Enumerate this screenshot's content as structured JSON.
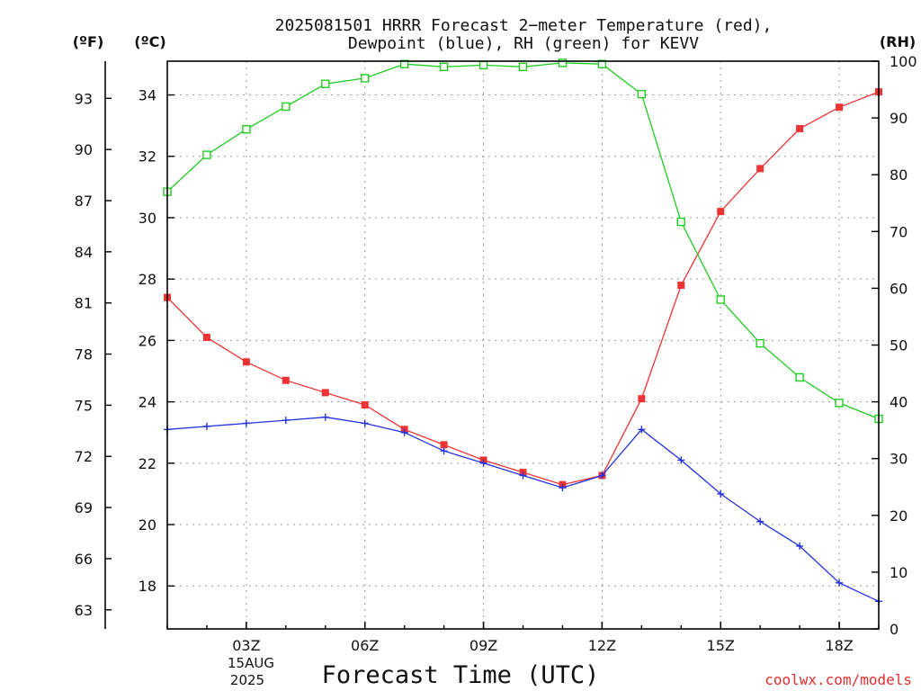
{
  "title_line1": "2025081501 HRRR Forecast 2−meter Temperature (red),",
  "title_line2": "Dewpoint (blue), RH (green) for KEVV",
  "unit_f": "(ºF)",
  "unit_c": "(ºC)",
  "unit_rh": "(RH)",
  "x_title": "Forecast Time (UTC)",
  "credit": "coolwx.com/models",
  "date_line1": "15AUG",
  "date_line2": "2025",
  "colors": {
    "temperature": "#ee3333",
    "dewpoint": "#2233dd",
    "rh": "#22cc22",
    "credit": "#e03030"
  },
  "chart_data": {
    "type": "line",
    "x_unit": "forecast hour (UTC)",
    "x": [
      1,
      2,
      3,
      4,
      5,
      6,
      7,
      8,
      9,
      10,
      11,
      12,
      13,
      14,
      15,
      16,
      17,
      18,
      19
    ],
    "xlim": [
      1,
      19
    ],
    "x_ticks": [
      {
        "x": 3,
        "label": "03Z"
      },
      {
        "x": 6,
        "label": "06Z"
      },
      {
        "x": 9,
        "label": "09Z"
      },
      {
        "x": 12,
        "label": "12Z"
      },
      {
        "x": 15,
        "label": "15Z"
      },
      {
        "x": 18,
        "label": "18Z"
      }
    ],
    "ylim_c": [
      16.6,
      35.1
    ],
    "y_ticks_c": [
      18,
      20,
      22,
      24,
      26,
      28,
      30,
      32,
      34
    ],
    "y_ticks_f": [
      63,
      66,
      69,
      72,
      75,
      78,
      81,
      84,
      87,
      90,
      93
    ],
    "ylim_rh": [
      0,
      100
    ],
    "y_ticks_rh": [
      0,
      10,
      20,
      30,
      40,
      50,
      60,
      70,
      80,
      90,
      100
    ],
    "grid": true,
    "series": [
      {
        "key": "temperature",
        "axis": "c",
        "marker": "filled-square",
        "values": [
          27.4,
          26.1,
          25.3,
          24.7,
          24.3,
          23.9,
          23.1,
          22.6,
          22.1,
          21.7,
          21.3,
          21.6,
          24.1,
          27.8,
          30.2,
          31.6,
          32.9,
          33.6,
          34.1
        ]
      },
      {
        "key": "dewpoint",
        "axis": "c",
        "marker": "plus",
        "values": [
          23.1,
          23.2,
          23.3,
          23.4,
          23.5,
          23.3,
          23.0,
          22.4,
          22.0,
          21.6,
          21.2,
          21.6,
          23.1,
          22.1,
          21.0,
          20.1,
          19.3,
          18.1,
          17.5
        ]
      },
      {
        "key": "rh",
        "axis": "rh",
        "marker": "open-square",
        "values": [
          77,
          83.5,
          88,
          92,
          96,
          97,
          99.5,
          99,
          99.3,
          99,
          99.7,
          99.5,
          94.2,
          71.7,
          58,
          50.3,
          44.3,
          39.8,
          37
        ]
      }
    ]
  }
}
